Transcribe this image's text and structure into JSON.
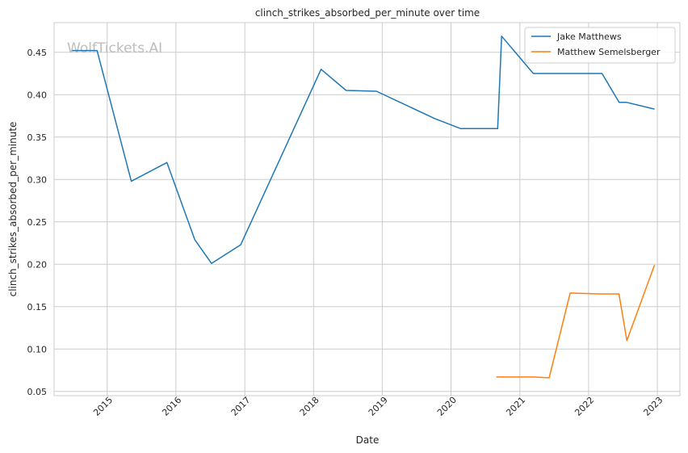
{
  "chart_data": {
    "type": "line",
    "title": "clinch_strikes_absorbed_per_minute over time",
    "xlabel": "Date",
    "ylabel": "clinch_strikes_absorbed_per_minute",
    "watermark": "WolfTickets.AI",
    "x_ticks": [
      "2015",
      "2016",
      "2017",
      "2018",
      "2019",
      "2020",
      "2021",
      "2022",
      "2023"
    ],
    "y_ticks": [
      "0.05",
      "0.10",
      "0.15",
      "0.20",
      "0.25",
      "0.30",
      "0.35",
      "0.40",
      "0.45"
    ],
    "xlim": [
      "2014-03-25",
      "2023-05-01"
    ],
    "ylim": [
      0.045,
      0.485
    ],
    "grid": true,
    "legend_position": "top-right",
    "series": [
      {
        "name": "Jake Matthews",
        "color": "#1f77b4",
        "points": [
          [
            "2014-06-28",
            0.452
          ],
          [
            "2014-11-08",
            0.452
          ],
          [
            "2015-05-09",
            0.298
          ],
          [
            "2015-11-14",
            0.32
          ],
          [
            "2016-04-10",
            0.229
          ],
          [
            "2016-07-08",
            0.201
          ],
          [
            "2016-12-10",
            0.223
          ],
          [
            "2018-02-10",
            0.43
          ],
          [
            "2018-06-23",
            0.405
          ],
          [
            "2018-12-01",
            0.404
          ],
          [
            "2019-10-05",
            0.372
          ],
          [
            "2020-02-22",
            0.36
          ],
          [
            "2020-09-05",
            0.36
          ],
          [
            "2020-09-26",
            0.469
          ],
          [
            "2021-03-13",
            0.425
          ],
          [
            "2022-03-13",
            0.425
          ],
          [
            "2022-06-12",
            0.391
          ],
          [
            "2022-07-20",
            0.391
          ],
          [
            "2022-12-17",
            0.383
          ]
        ]
      },
      {
        "name": "Matthew Semelsberger",
        "color": "#ff7f0e",
        "points": [
          [
            "2020-08-29",
            0.067
          ],
          [
            "2021-03-13",
            0.067
          ],
          [
            "2021-06-05",
            0.066
          ],
          [
            "2021-09-25",
            0.166
          ],
          [
            "2022-02-26",
            0.165
          ],
          [
            "2022-06-11",
            0.165
          ],
          [
            "2022-07-23",
            0.11
          ],
          [
            "2022-12-17",
            0.199
          ]
        ]
      }
    ]
  }
}
